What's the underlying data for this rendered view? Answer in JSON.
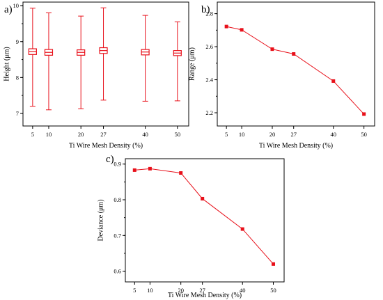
{
  "colors": {
    "series": "#e8101a",
    "axis": "#000000"
  },
  "chart_data": [
    {
      "panel": "a)",
      "type": "box",
      "xlabel": "Ti Wire Mesh Density (%)",
      "ylabel": "Height (μm)",
      "x": [
        5,
        10,
        20,
        27,
        40,
        50
      ],
      "xticks": [
        5,
        10,
        20,
        27,
        40,
        50
      ],
      "yticks": [
        7,
        8,
        9,
        10
      ],
      "ylim": [
        6.65,
        10.1
      ],
      "boxes": [
        {
          "min": 7.2,
          "q1": 8.64,
          "median": 8.72,
          "q3": 8.8,
          "max": 9.93
        },
        {
          "min": 7.1,
          "q1": 8.62,
          "median": 8.7,
          "q3": 8.78,
          "max": 9.8
        },
        {
          "min": 7.13,
          "q1": 8.62,
          "median": 8.7,
          "q3": 8.77,
          "max": 9.71
        },
        {
          "min": 7.37,
          "q1": 8.67,
          "median": 8.75,
          "q3": 8.83,
          "max": 9.94
        },
        {
          "min": 7.34,
          "q1": 8.63,
          "median": 8.71,
          "q3": 8.78,
          "max": 9.73
        },
        {
          "min": 7.35,
          "q1": 8.61,
          "median": 8.68,
          "q3": 8.75,
          "max": 9.55
        }
      ]
    },
    {
      "panel": "b)",
      "type": "line",
      "xlabel": "Ti Wire Mesh Density (%)",
      "ylabel": "Range (μm)",
      "x": [
        5,
        10,
        20,
        27,
        40,
        50
      ],
      "values": [
        2.722,
        2.702,
        2.585,
        2.556,
        2.392,
        2.192
      ],
      "xticks": [
        5,
        10,
        20,
        27,
        40,
        50
      ],
      "yticks": [
        2.2,
        2.4,
        2.6,
        2.8
      ],
      "ytick_labels": [
        "2.2",
        "2.4",
        "2.6",
        "2.8"
      ],
      "ylim": [
        2.12,
        2.87
      ]
    },
    {
      "panel": "c)",
      "type": "line",
      "xlabel": "Ti Wire Mesh Density (%)",
      "ylabel": "Deviance (μm)",
      "x": [
        5,
        10,
        20,
        27,
        40,
        50
      ],
      "values": [
        0.883,
        0.887,
        0.875,
        0.803,
        0.718,
        0.62
      ],
      "xticks": [
        5,
        10,
        20,
        27,
        40,
        50
      ],
      "yticks": [
        0.6,
        0.7,
        0.8,
        0.9
      ],
      "ytick_labels": [
        "0.6",
        "0.7",
        "0.8",
        "0.9"
      ],
      "ylim": [
        0.57,
        0.915
      ]
    }
  ]
}
